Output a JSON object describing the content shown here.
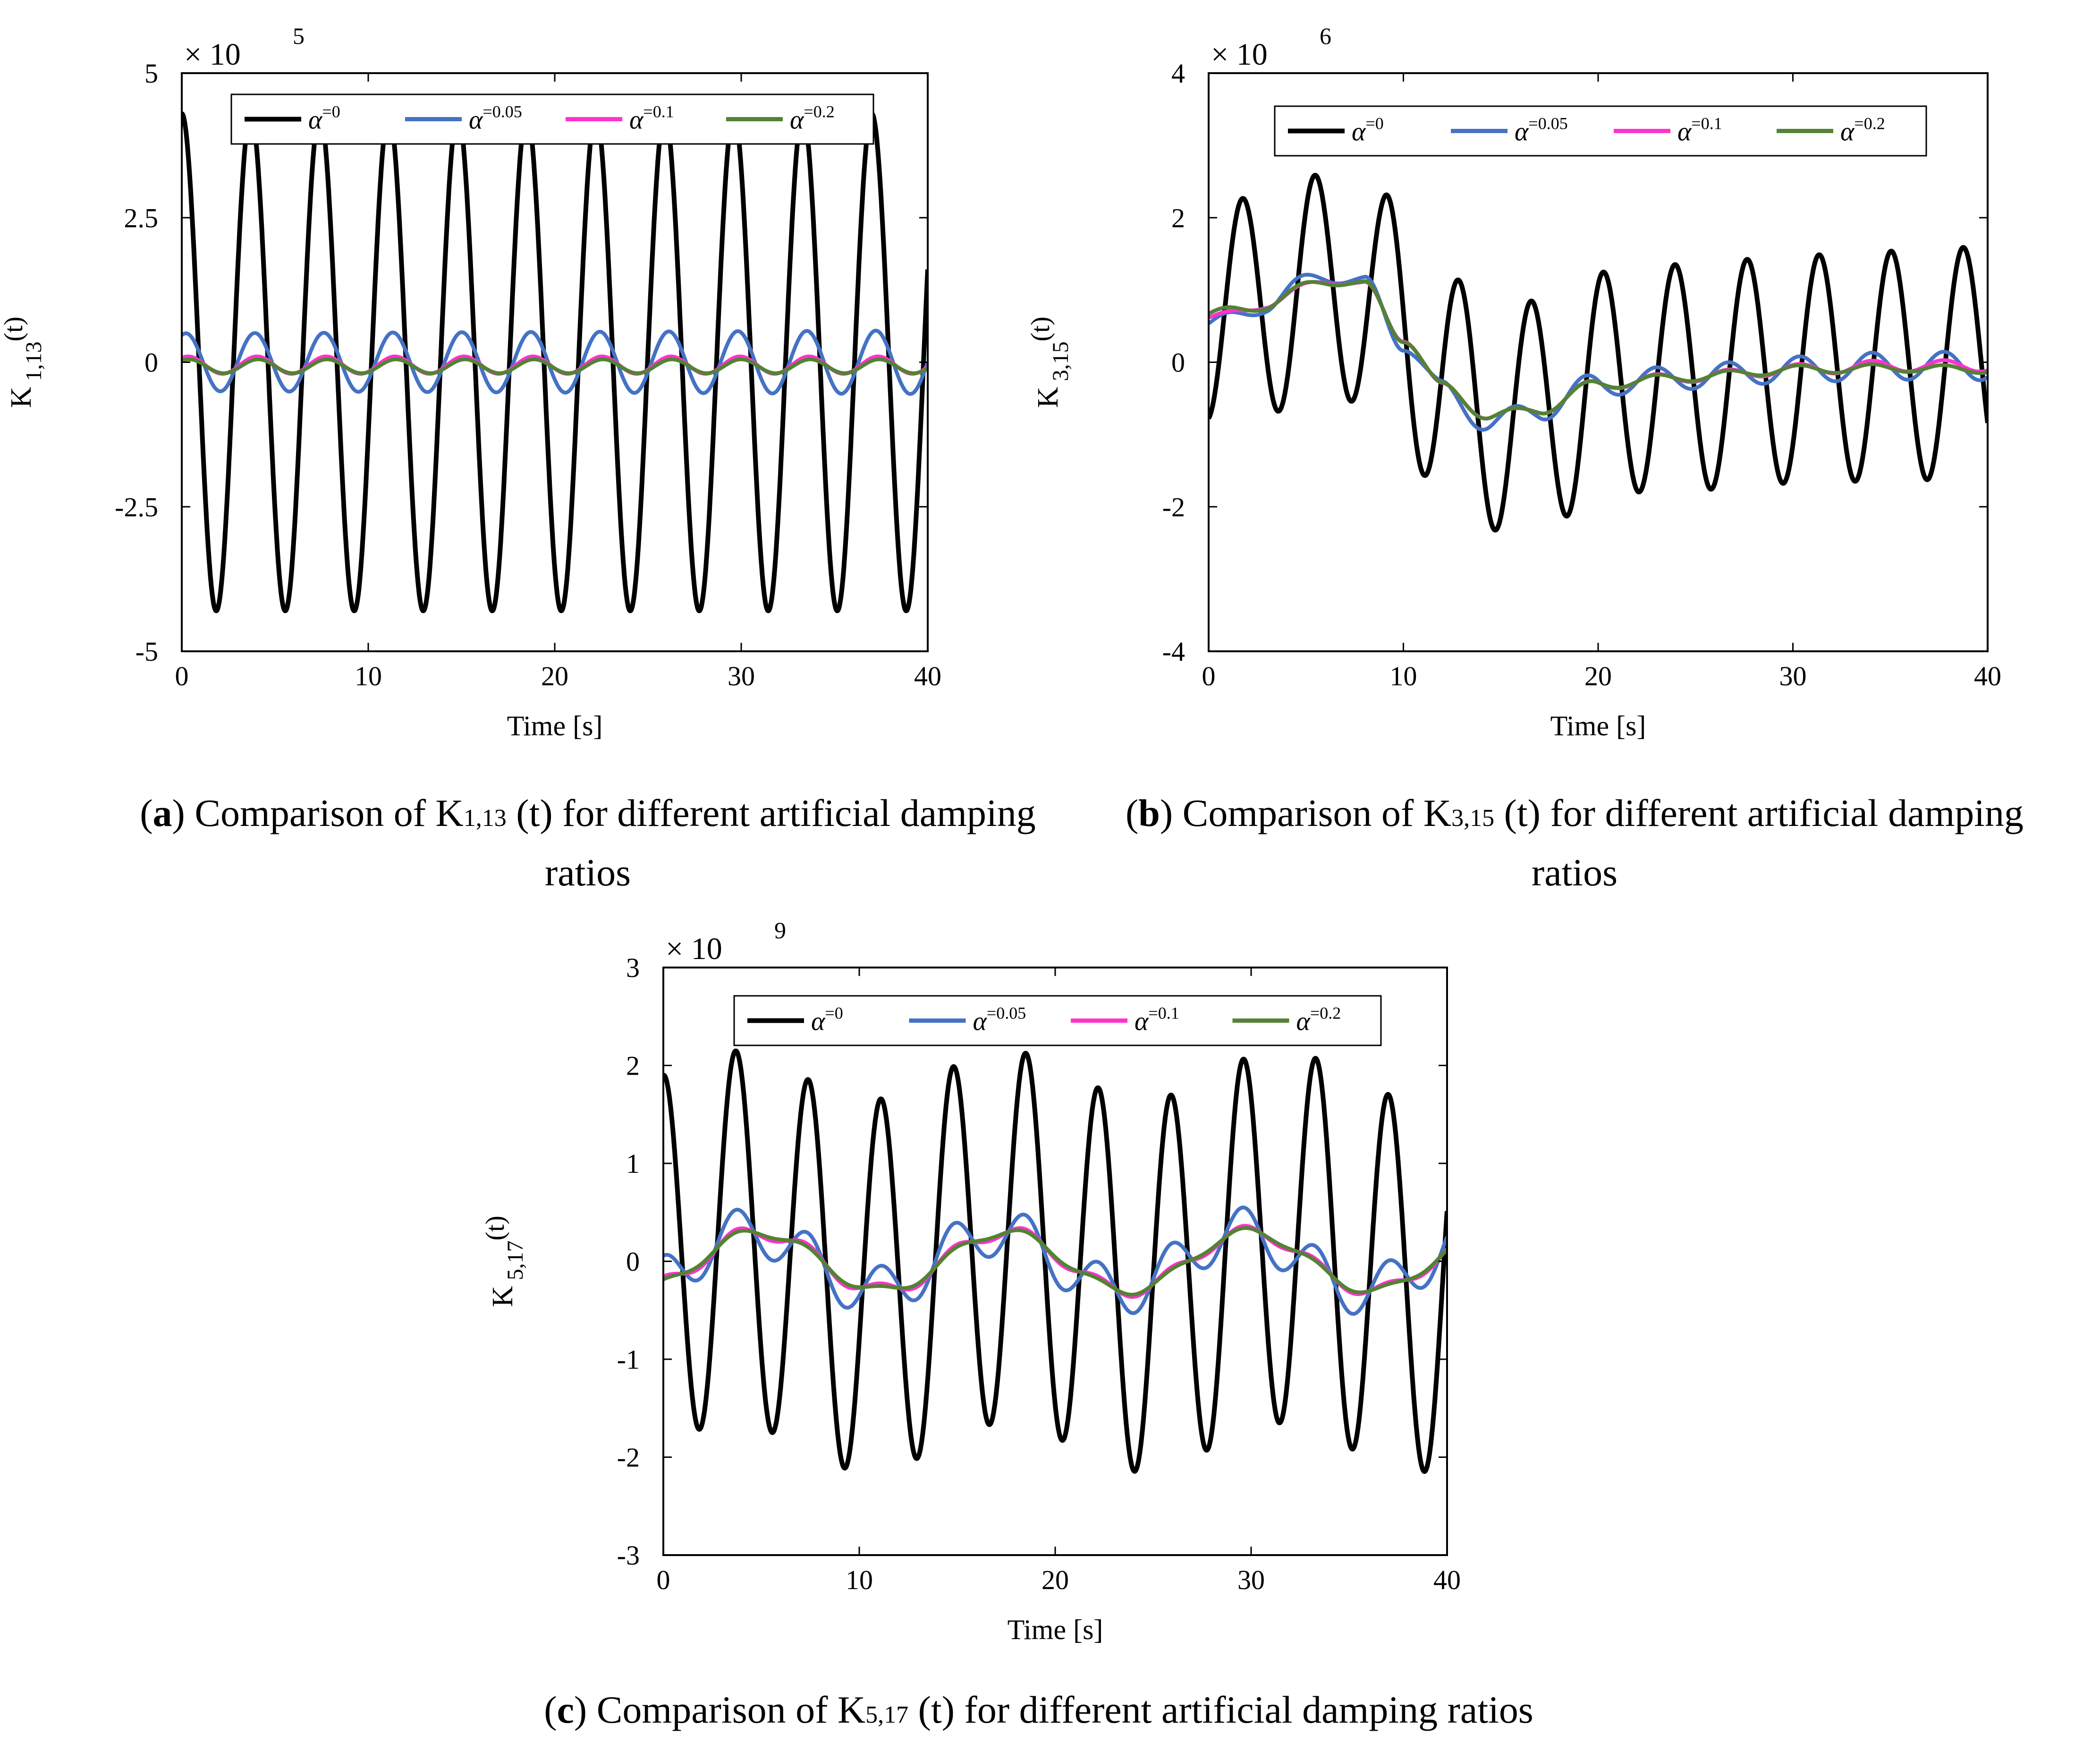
{
  "colors": {
    "alpha_0": "#000000",
    "alpha_0_05": "#4472C4",
    "alpha_0_1": "#FF33CC",
    "alpha_0_2": "#548235"
  },
  "chart_data": [
    {
      "type": "line",
      "panel": "a",
      "ylabel_main": "K",
      "ylabel_sub": "1,13",
      "ylabel_tail": "(t)",
      "xlabel": "Time [s]",
      "exponent_label": "× 10",
      "exponent_power": "5",
      "xlim": [
        0,
        40
      ],
      "ylim": [
        -5,
        5
      ],
      "xticks": [
        0,
        10,
        20,
        30,
        40
      ],
      "yticks": [
        5,
        2.5,
        0,
        -2.5,
        -5
      ],
      "ytick_labels": [
        "5",
        "2.5",
        "0",
        "-2.5",
        "-5"
      ],
      "legend_placement": "top",
      "series": [
        {
          "name": "α=0",
          "color": "#000000",
          "period": 3.7,
          "amp_start": 4.3,
          "amp_end": 4.3,
          "phase": 1.571,
          "offset_points": [
            [
              0,
              0
            ]
          ],
          "slow": []
        },
        {
          "name": "α=0.05",
          "color": "#4472C4",
          "period": 3.7,
          "amp_start": 0.5,
          "amp_end": 0.55,
          "phase": 1.2,
          "offset_points": [
            [
              0,
              0
            ]
          ],
          "slow": []
        },
        {
          "name": "α=0.1",
          "color": "#FF33CC",
          "period": 3.7,
          "amp_start": 0.15,
          "amp_end": 0.15,
          "phase": 1.0,
          "offset_points": [
            [
              0,
              -0.05
            ],
            [
              40,
              -0.05
            ]
          ],
          "slow": []
        },
        {
          "name": "α=0.2",
          "color": "#548235",
          "period": 3.7,
          "amp_start": 0.12,
          "amp_end": 0.12,
          "phase": 0.9,
          "offset_points": [
            [
              0,
              -0.07
            ],
            [
              40,
              -0.07
            ]
          ],
          "slow": []
        }
      ]
    },
    {
      "type": "line",
      "panel": "b",
      "ylabel_main": "K",
      "ylabel_sub": "3,15",
      "ylabel_tail": "(t)",
      "xlabel": "Time [s]",
      "exponent_label": "× 10",
      "exponent_power": "6",
      "xlim": [
        0,
        40
      ],
      "ylim": [
        -4,
        4
      ],
      "xticks": [
        0,
        10,
        20,
        30,
        40
      ],
      "yticks": [
        4,
        2,
        0,
        -2,
        -4
      ],
      "ytick_labels": [
        "4",
        "2",
        "0",
        "-2",
        "-4"
      ],
      "legend_placement": "top",
      "series": [
        {
          "name": "α=0",
          "color": "#000000",
          "period": 3.7,
          "amp_start": 1.5,
          "amp_end": 1.6,
          "phase": -1.4,
          "offset_points": [
            [
              0,
              0.7
            ],
            [
              3,
              0.8
            ],
            [
              6,
              1.1
            ],
            [
              9,
              0.8
            ],
            [
              12,
              -0.3
            ],
            [
              15,
              -0.8
            ],
            [
              18,
              -0.6
            ],
            [
              21,
              -0.25
            ],
            [
              25,
              -0.2
            ],
            [
              30,
              -0.1
            ],
            [
              35,
              -0.05
            ],
            [
              40,
              0
            ]
          ],
          "slow": []
        },
        {
          "name": "α=0.05",
          "color": "#4472C4",
          "period": 3.7,
          "amp_start": 0.12,
          "amp_end": 0.2,
          "phase": 0.3,
          "offset_points": [
            [
              0,
              0.5
            ],
            [
              3,
              0.8
            ],
            [
              6,
              1.25
            ],
            [
              8,
              1.05
            ],
            [
              10,
              0.3
            ],
            [
              12,
              -0.4
            ],
            [
              14.5,
              -0.85
            ],
            [
              17,
              -0.65
            ],
            [
              20,
              -0.3
            ],
            [
              25,
              -0.2
            ],
            [
              30,
              -0.1
            ],
            [
              35,
              -0.05
            ],
            [
              40,
              -0.05
            ]
          ],
          "slow": []
        },
        {
          "name": "α=0.1",
          "color": "#FF33CC",
          "period": 3.7,
          "amp_start": 0.06,
          "amp_end": 0.08,
          "phase": 0.3,
          "offset_points": [
            [
              0,
              0.6
            ],
            [
              3,
              0.8
            ],
            [
              6,
              1.15
            ],
            [
              8,
              1.05
            ],
            [
              10,
              0.35
            ],
            [
              12,
              -0.35
            ],
            [
              14.5,
              -0.75
            ],
            [
              17,
              -0.65
            ],
            [
              20,
              -0.3
            ],
            [
              25,
              -0.2
            ],
            [
              30,
              -0.1
            ],
            [
              35,
              -0.05
            ],
            [
              40,
              -0.05
            ]
          ],
          "slow": []
        },
        {
          "name": "α=0.2",
          "color": "#548235",
          "period": 3.7,
          "amp_start": 0.08,
          "amp_end": 0.05,
          "phase": 0.3,
          "offset_points": [
            [
              0,
              0.65
            ],
            [
              3,
              0.8
            ],
            [
              6,
              1.15
            ],
            [
              8,
              1.05
            ],
            [
              10,
              0.35
            ],
            [
              12,
              -0.35
            ],
            [
              14.5,
              -0.75
            ],
            [
              17,
              -0.65
            ],
            [
              20,
              -0.3
            ],
            [
              25,
              -0.2
            ],
            [
              30,
              -0.1
            ],
            [
              35,
              -0.08
            ],
            [
              40,
              -0.1
            ]
          ],
          "slow": []
        }
      ]
    },
    {
      "type": "line",
      "panel": "c",
      "ylabel_main": "K",
      "ylabel_sub": "5,17",
      "ylabel_tail": "(t)",
      "xlabel": "Time [s]",
      "exponent_label": "× 10",
      "exponent_power": "9",
      "xlim": [
        0,
        40
      ],
      "ylim": [
        -3,
        3
      ],
      "xticks": [
        0,
        10,
        20,
        30,
        40
      ],
      "yticks": [
        3,
        2,
        1,
        0,
        -1,
        -2,
        -3
      ],
      "ytick_labels": [
        "3",
        "2",
        "1",
        "0",
        "-1",
        "-2",
        "-3"
      ],
      "legend_placement": "top",
      "series": [
        {
          "name": "α=0",
          "color": "#000000",
          "period": 3.7,
          "amp_start": 1.9,
          "amp_end": 1.9,
          "phase": 1.571,
          "offset_points": [
            [
              0,
              0
            ]
          ],
          "slow": [
            {
              "amp": 0.25,
              "period": 14,
              "phase": 0
            }
          ]
        },
        {
          "name": "α=0.05",
          "color": "#4472C4",
          "period": 3.7,
          "amp_start": 0.25,
          "amp_end": 0.25,
          "phase": 1.571,
          "offset_points": [
            [
              0,
              0
            ]
          ],
          "slow": [
            {
              "amp": 0.3,
              "period": 12.5,
              "phase": -0.7
            }
          ]
        },
        {
          "name": "α=0.1",
          "color": "#FF33CC",
          "period": 3.7,
          "amp_start": 0.08,
          "amp_end": 0.06,
          "phase": 1.571,
          "offset_points": [
            [
              0,
              0
            ]
          ],
          "slow": [
            {
              "amp": 0.3,
              "period": 12.5,
              "phase": -0.9
            }
          ]
        },
        {
          "name": "α=0.2",
          "color": "#548235",
          "period": 3.7,
          "amp_start": 0.05,
          "amp_end": 0.04,
          "phase": 1.571,
          "offset_points": [
            [
              0,
              0
            ]
          ],
          "slow": [
            {
              "amp": 0.3,
              "period": 12.5,
              "phase": -0.9
            }
          ]
        }
      ]
    }
  ],
  "captions": {
    "a": {
      "letter": "a",
      "text_before": " Comparison of K",
      "sub": "1,13",
      "text_after": " (t) for different artificial damping",
      "line2": "ratios"
    },
    "b": {
      "letter": "b",
      "text_before": " Comparison of K",
      "sub": "3,15",
      "text_after": " (t) for different artificial damping",
      "line2": "ratios"
    },
    "c": {
      "letter": "c",
      "text_before": " Comparison of K",
      "sub": "5,17",
      "text_after": " (t) for different artificial damping ratios",
      "line2": ""
    }
  }
}
